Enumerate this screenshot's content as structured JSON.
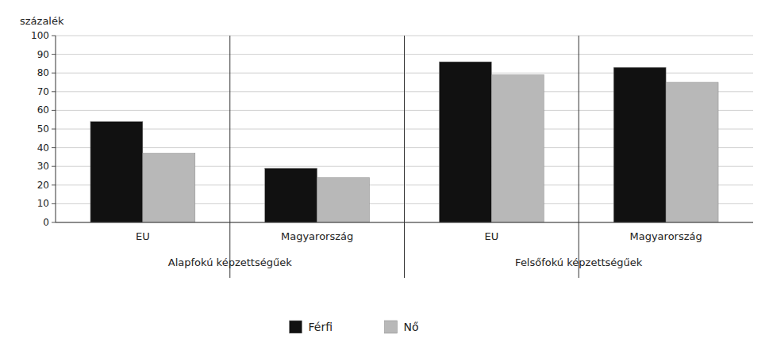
{
  "chart_data": {
    "type": "bar",
    "y_label": "százalék",
    "categories": [
      "EU",
      "Magyarország",
      "EU",
      "Magyarország"
    ],
    "annotations": [
      "Alapfokú képzettségűek",
      "Felsőfokú képzettségűek"
    ],
    "series": [
      {
        "name": "Férfi",
        "color": "#111111",
        "values": [
          54,
          29,
          86,
          83
        ]
      },
      {
        "name": "Nő",
        "color": "#b8b8b8",
        "values": [
          37,
          24,
          79,
          75
        ]
      }
    ],
    "ylim": [
      0,
      100
    ],
    "yticks": [
      0,
      10,
      20,
      30,
      40,
      50,
      60,
      70,
      80,
      90,
      100
    ],
    "grid": true,
    "legend": "bottom"
  }
}
